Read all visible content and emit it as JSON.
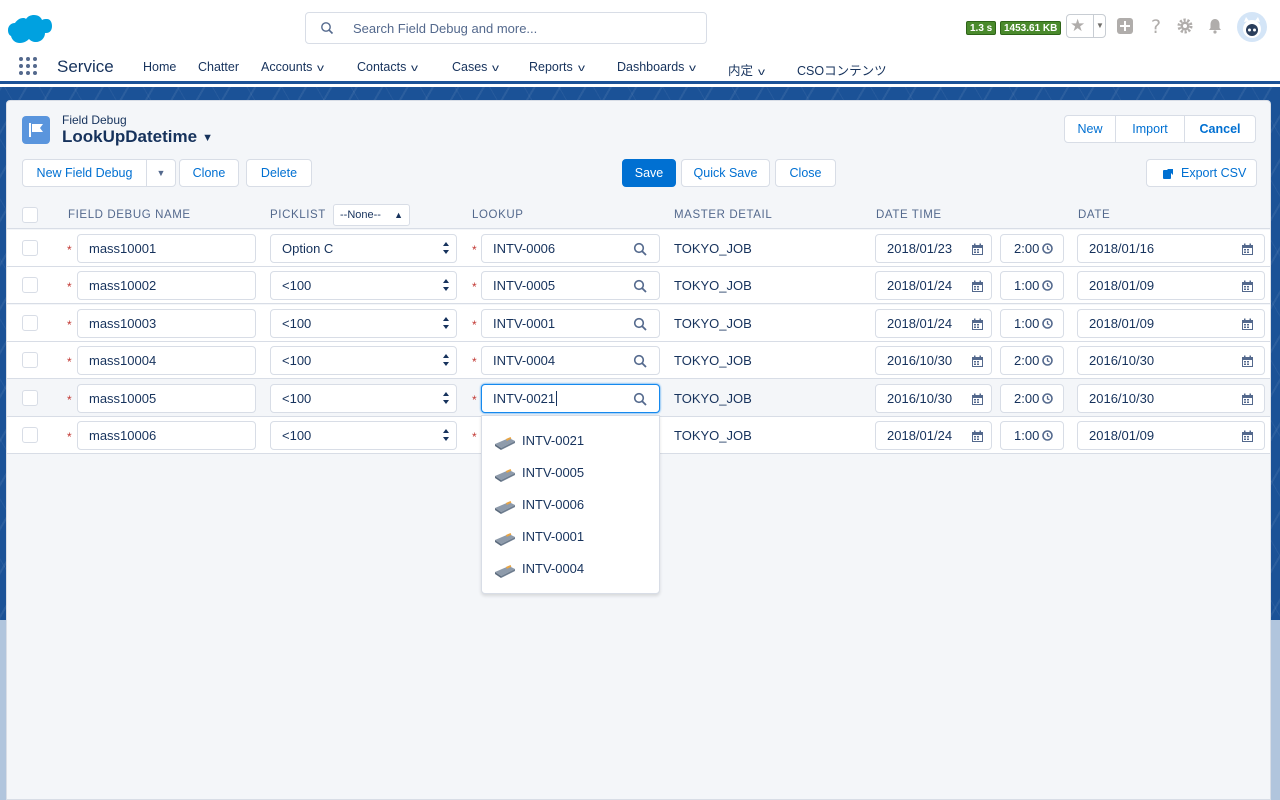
{
  "header": {
    "search_placeholder": "Search Field Debug and more...",
    "perf_time": "1.3 s",
    "perf_size": "1453.61 KB"
  },
  "nav": {
    "app_name": "Service",
    "items": [
      {
        "label": "Home",
        "has_menu": false
      },
      {
        "label": "Chatter",
        "has_menu": false
      },
      {
        "label": "Accounts",
        "has_menu": true
      },
      {
        "label": "Contacts",
        "has_menu": true
      },
      {
        "label": "Cases",
        "has_menu": true
      },
      {
        "label": "Reports",
        "has_menu": true
      },
      {
        "label": "Dashboards",
        "has_menu": true
      },
      {
        "label": "内定",
        "has_menu": true
      },
      {
        "label": "CSOコンテンツ",
        "has_menu": false
      }
    ]
  },
  "page": {
    "object_label": "Field Debug",
    "title": "LookUpDatetime"
  },
  "actions": {
    "top_right": [
      "New",
      "Import",
      "Cancel"
    ],
    "new_field_debug": "New Field Debug",
    "clone": "Clone",
    "delete": "Delete",
    "save": "Save",
    "quick_save": "Quick Save",
    "close": "Close",
    "export_csv": "Export CSV"
  },
  "table": {
    "columns": [
      "FIELD DEBUG NAME",
      "PICKLIST",
      "LOOKUP",
      "MASTER DETAIL",
      "DATE TIME",
      "DATE"
    ],
    "picklist_filter": "--None--",
    "rows": [
      {
        "name": "mass10001",
        "picklist": "Option C",
        "lookup": "INTV-0006",
        "master": "TOKYO_JOB",
        "dt_date": "2018/01/23",
        "dt_time": "2:00",
        "date": "2018/01/16"
      },
      {
        "name": "mass10002",
        "picklist": "<100",
        "lookup": "INTV-0005",
        "master": "TOKYO_JOB",
        "dt_date": "2018/01/24",
        "dt_time": "1:00",
        "date": "2018/01/09"
      },
      {
        "name": "mass10003",
        "picklist": "<100",
        "lookup": "INTV-0001",
        "master": "TOKYO_JOB",
        "dt_date": "2018/01/24",
        "dt_time": "1:00",
        "date": "2018/01/09"
      },
      {
        "name": "mass10004",
        "picklist": "<100",
        "lookup": "INTV-0004",
        "master": "TOKYO_JOB",
        "dt_date": "2016/10/30",
        "dt_time": "2:00",
        "date": "2016/10/30"
      },
      {
        "name": "mass10005",
        "picklist": "<100",
        "lookup": "INTV-0021",
        "master": "TOKYO_JOB",
        "dt_date": "2016/10/30",
        "dt_time": "2:00",
        "date": "2016/10/30"
      },
      {
        "name": "mass10006",
        "picklist": "<100",
        "lookup": "",
        "master": "TOKYO_JOB",
        "dt_date": "2018/01/24",
        "dt_time": "1:00",
        "date": "2018/01/09"
      }
    ]
  },
  "lookup_dropdown": {
    "options": [
      "INTV-0021",
      "INTV-0005",
      "INTV-0006",
      "INTV-0001",
      "INTV-0004"
    ]
  }
}
